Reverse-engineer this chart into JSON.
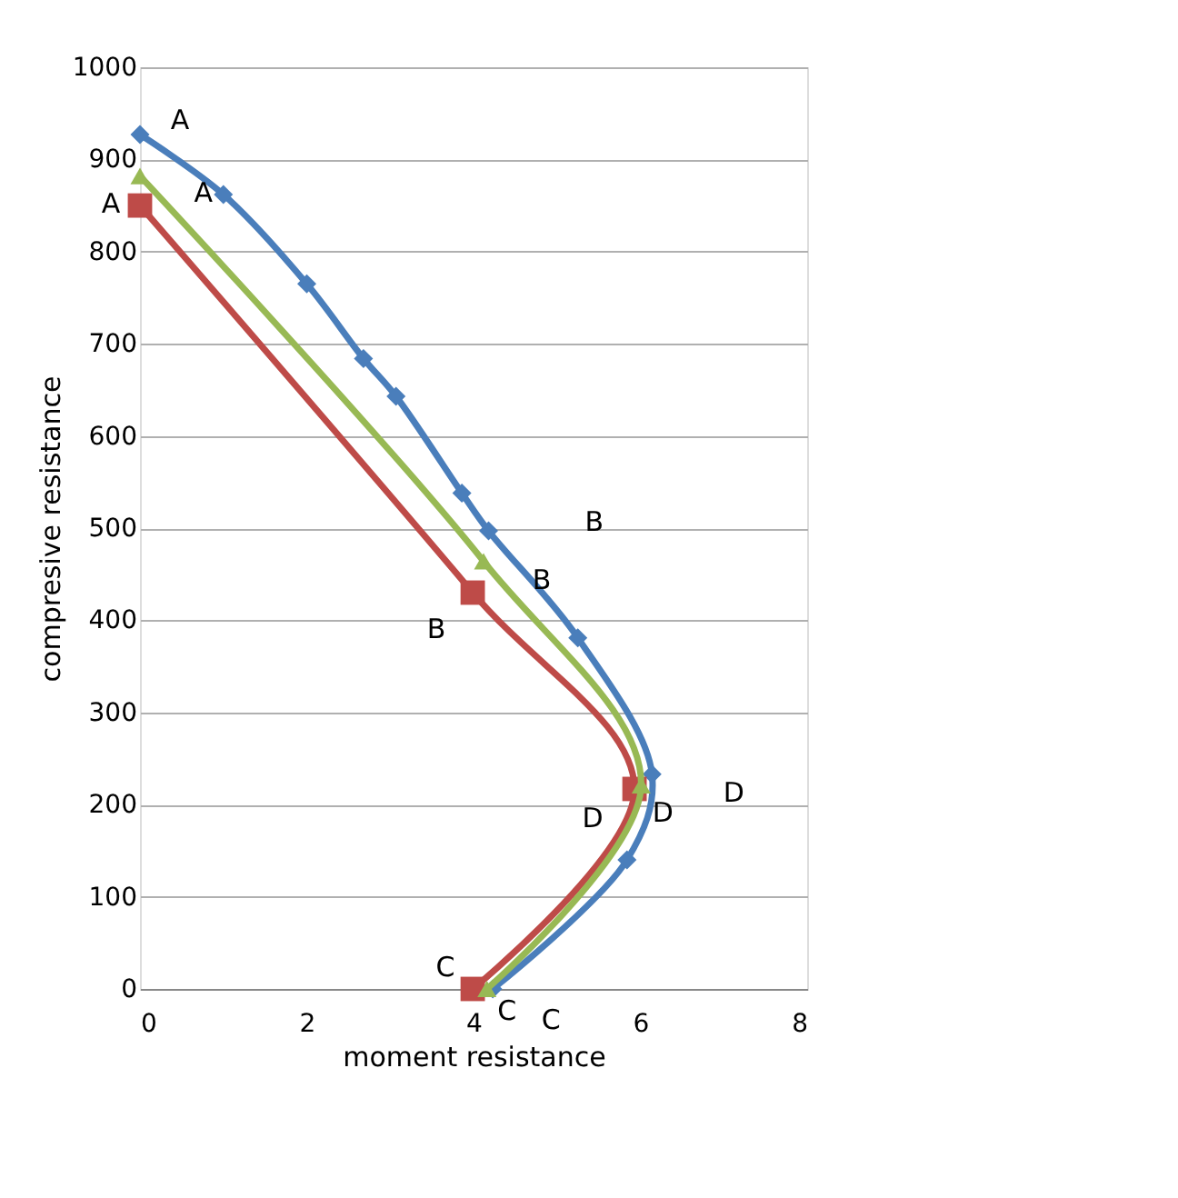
{
  "chart_data": {
    "type": "line",
    "xlabel": "moment resistance",
    "ylabel": "compresive resistance",
    "xlim": [
      0,
      8
    ],
    "xticks": [
      0,
      2,
      4,
      6,
      8
    ],
    "ylim": [
      0,
      1000
    ],
    "yticks": [
      0,
      100,
      200,
      300,
      400,
      500,
      600,
      700,
      800,
      900,
      1000
    ],
    "grid": "y",
    "line_style": "solid",
    "series": [
      {
        "color": "#4a7ebb",
        "marker": "diamond",
        "x": [
          0,
          1.0,
          2.0,
          2.68,
          3.07,
          3.86,
          4.18,
          5.25,
          6.14,
          5.84,
          4.23
        ],
        "values": [
          927,
          862,
          765,
          684,
          643,
          538,
          497,
          381,
          233,
          140,
          0
        ]
      },
      {
        "color": "#be4b48",
        "marker": "square",
        "x": [
          0,
          3.99,
          5.93,
          3.99
        ],
        "values": [
          850,
          430,
          217,
          0
        ]
      },
      {
        "color": "#98b954",
        "marker": "triangle",
        "x": [
          0,
          4.12,
          6.01,
          4.16
        ],
        "values": [
          882,
          464,
          221,
          0
        ]
      }
    ],
    "annotations": [
      "A",
      "A",
      "A",
      "B",
      "B",
      "B",
      "D",
      "D",
      "D",
      "C",
      "C",
      "C"
    ]
  }
}
